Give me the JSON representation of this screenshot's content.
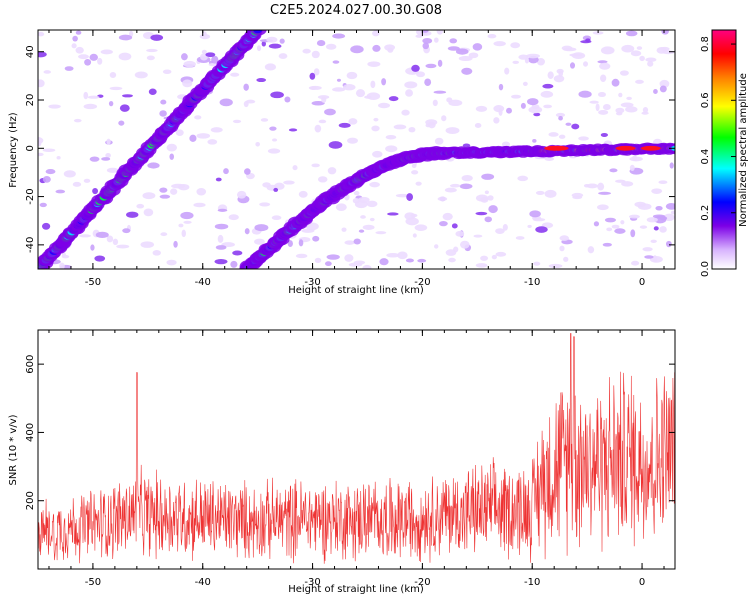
{
  "title": "C2E5.2024.027.00.30.G08",
  "chart_data": [
    {
      "type": "heatmap",
      "xlabel": "Height of straight line (km)",
      "ylabel": "Frequency (Hz)",
      "xlim": [
        -55,
        3
      ],
      "ylim": [
        -50,
        49
      ],
      "xticks": [
        -50,
        -40,
        -30,
        -20,
        -10,
        0
      ],
      "yticks": [
        -40,
        -20,
        0,
        20,
        40
      ],
      "colorbar": {
        "label": "Normalized spectral amplitude",
        "range": [
          0,
          0.85
        ],
        "ticks": [
          "0.0",
          "0.2",
          "0.4",
          "0.6",
          "0.8"
        ],
        "colormap": [
          "#ffffff",
          "#d8b4fe",
          "#7c00e6",
          "#0000ff",
          "#00ffff",
          "#00ff00",
          "#ffff00",
          "#ff8000",
          "#ff0000",
          "#ff0080"
        ]
      },
      "features": [
        {
          "name": "",
          "x_from": -55,
          "y_from": -50,
          "x_to": -35,
          "y_to": 49
        },
        {
          "name": "",
          "x_from": -36,
          "y_from": -50,
          "x_to": -18,
          "y_to": -2
        },
        {
          "name": "",
          "x_from": -18,
          "y_from": -2,
          "x_to": 3,
          "y_to": 0
        }
      ]
    },
    {
      "type": "line",
      "xlabel": "Height of straight line (km)",
      "ylabel": "SNR (10 * v/v)",
      "xlim": [
        -55,
        3
      ],
      "ylim": [
        0,
        700
      ],
      "xticks": [
        -50,
        -40,
        -30,
        -20,
        -10,
        0
      ],
      "yticks": [
        200,
        400,
        600
      ],
      "color": "#ee3333",
      "series_envelope": [
        {
          "x": -55,
          "y": 110
        },
        {
          "x": -50,
          "y": 130
        },
        {
          "x": -46,
          "y": 160
        },
        {
          "x": -40,
          "y": 150
        },
        {
          "x": -35,
          "y": 140
        },
        {
          "x": -30,
          "y": 150
        },
        {
          "x": -25,
          "y": 145
        },
        {
          "x": -20,
          "y": 150
        },
        {
          "x": -15,
          "y": 170
        },
        {
          "x": -10,
          "y": 180
        },
        {
          "x": -9,
          "y": 270
        },
        {
          "x": -6.5,
          "y": 330
        },
        {
          "x": -4,
          "y": 310
        },
        {
          "x": -1,
          "y": 330
        },
        {
          "x": 1,
          "y": 310
        },
        {
          "x": 3,
          "y": 350
        }
      ],
      "peaks": [
        {
          "x": -46,
          "y": 575
        },
        {
          "x": -6.5,
          "y": 690
        },
        {
          "x": -6.2,
          "y": 680
        },
        {
          "x": 3,
          "y": 575
        }
      ]
    }
  ]
}
